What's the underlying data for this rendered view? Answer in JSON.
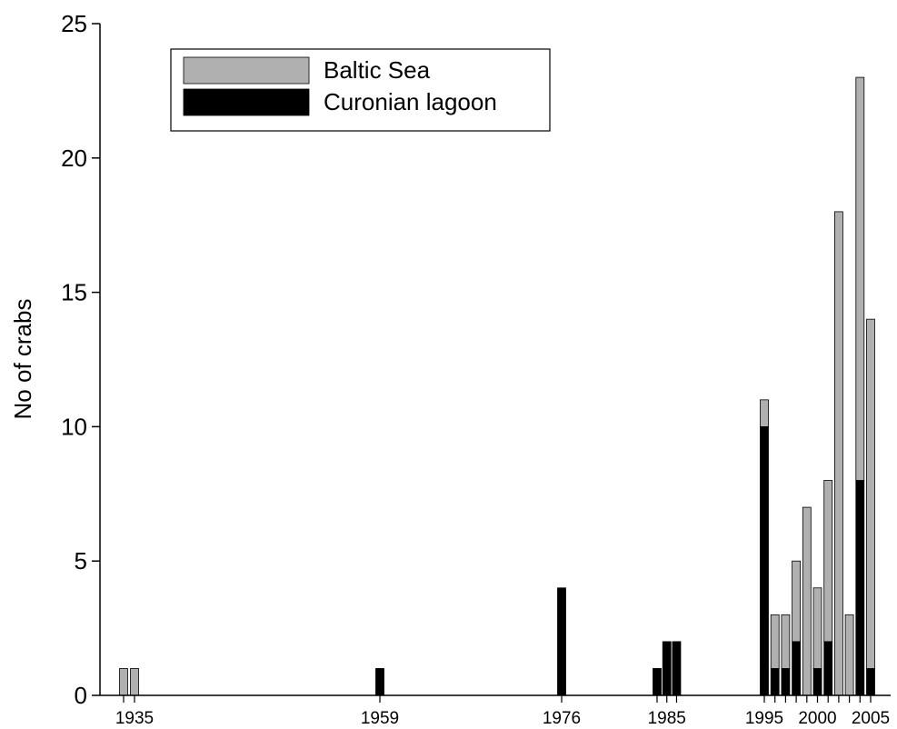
{
  "chart_data": {
    "type": "bar",
    "stacked": true,
    "title": "",
    "xlabel": "",
    "ylabel": "No of crabs",
    "ylim": [
      0,
      25
    ],
    "yticks": [
      0,
      5,
      10,
      15,
      20,
      25
    ],
    "x_tick_labels": [
      "1935",
      "1959",
      "1976",
      "1985",
      "1995",
      "2000",
      "2005"
    ],
    "categories": [
      1934,
      1935,
      1959,
      1976,
      1984,
      1985,
      1986,
      1995,
      1996,
      1997,
      1998,
      1999,
      2000,
      2001,
      2002,
      2003,
      2004,
      2005
    ],
    "series": [
      {
        "name": "Curonian lagoon",
        "color": "#000000",
        "values": [
          0,
          0,
          1,
          4,
          1,
          2,
          2,
          10,
          1,
          1,
          2,
          0,
          1,
          2,
          0,
          0,
          8,
          1
        ]
      },
      {
        "name": "Baltic Sea",
        "color": "#b0b0b0",
        "values": [
          1,
          1,
          0,
          0,
          0,
          0,
          0,
          1,
          2,
          2,
          3,
          7,
          3,
          6,
          18,
          3,
          15,
          13
        ]
      }
    ],
    "legend_position": "top-left",
    "grid": false
  }
}
